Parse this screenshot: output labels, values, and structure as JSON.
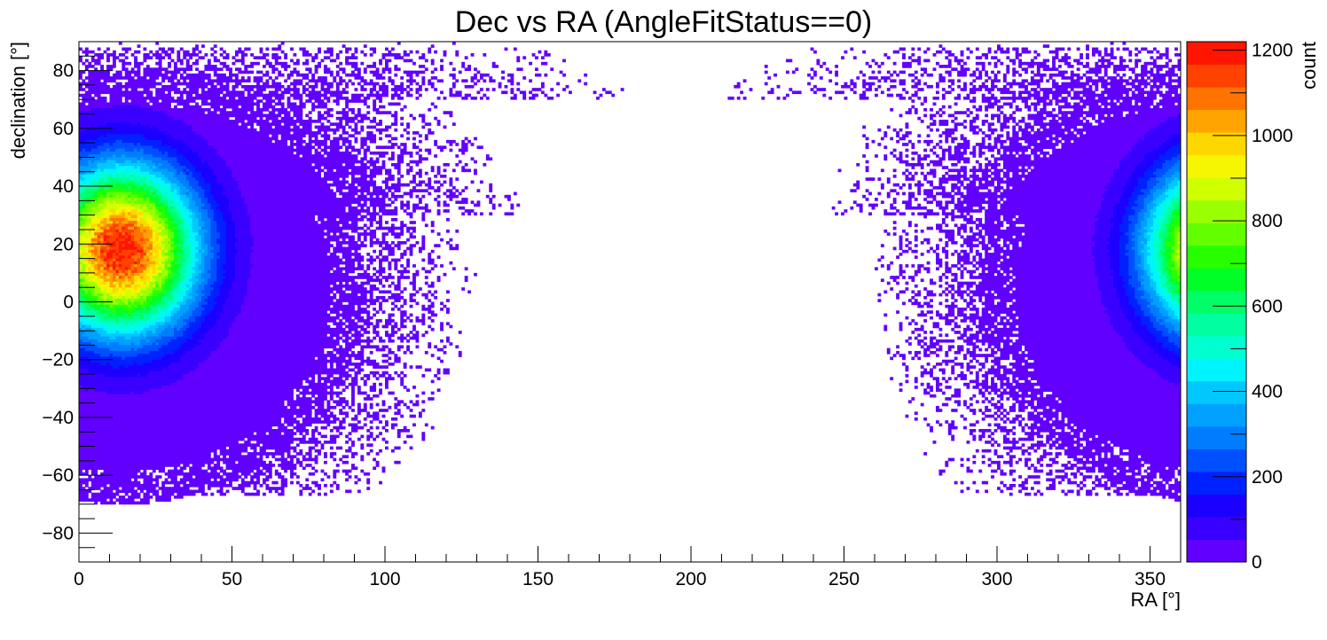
{
  "chart_data": {
    "type": "heatmap",
    "title": "Dec vs RA (AngleFitStatus==0)",
    "xlabel": "RA [°]",
    "ylabel": "declination [°]",
    "zlabel": "count",
    "xlim": [
      0,
      360
    ],
    "ylim": [
      -90,
      90
    ],
    "zlim": [
      0,
      1220
    ],
    "x_ticks": [
      0,
      50,
      100,
      150,
      200,
      250,
      300,
      350
    ],
    "y_ticks": [
      -80,
      -60,
      -40,
      -20,
      0,
      20,
      40,
      60,
      80
    ],
    "z_ticks": [
      0,
      200,
      400,
      600,
      800,
      1000,
      1200
    ],
    "x_tick_labels": [
      "0",
      "50",
      "100",
      "150",
      "200",
      "250",
      "300",
      "350"
    ],
    "y_tick_labels": [
      "−80",
      "−60",
      "−40",
      "−20",
      "0",
      "20",
      "40",
      "60",
      "80"
    ],
    "z_tick_labels": [
      "0",
      "200",
      "400",
      "600",
      "800",
      "1000",
      "1200"
    ],
    "bins": {
      "nx": 360,
      "ny": 180
    },
    "peak": {
      "ra": 14,
      "dec": 18,
      "count": 1200
    },
    "distribution": "count density concentrated around RA≈14°, Dec≈18°, wrapping across RA=0/360; sparse/empty region between RA≈100° and RA≈290° at high declination, empty below Dec≈-67°",
    "palette": [
      "#6100ff",
      "#3a00ff",
      "#1c00ff",
      "#0021ff",
      "#0050ff",
      "#007dff",
      "#00a0ff",
      "#00c8ff",
      "#00f4ff",
      "#00ffd0",
      "#00ffa0",
      "#00ff66",
      "#00ff26",
      "#27ff00",
      "#63ff00",
      "#9aff00",
      "#d0ff00",
      "#f6f600",
      "#ffd700",
      "#ffa400",
      "#ff7300",
      "#ff4200",
      "#ff1500"
    ],
    "grid": false
  }
}
